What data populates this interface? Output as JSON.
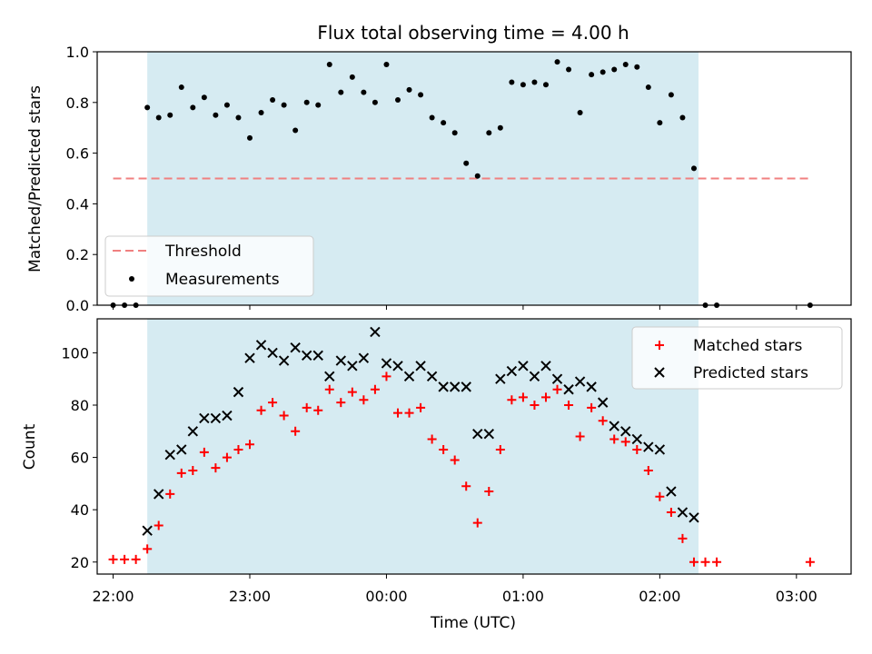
{
  "colors": {
    "span": "#add8e6",
    "threshold": "#f08080",
    "matched": "#ff0000",
    "predicted": "#000000",
    "measurement": "#000000"
  },
  "chart_data": [
    {
      "type": "scatter",
      "title": "Flux total observing time = 4.00 h",
      "xlabel": "",
      "ylabel": "Matched/Predicted stars",
      "ylim": [
        0,
        1.0
      ],
      "yticks": [
        "0.0",
        "0.2",
        "0.4",
        "0.6",
        "0.8",
        "1.0"
      ],
      "observing_window": [
        "22:15",
        "02:17"
      ],
      "legend": {
        "placement": "lower-left",
        "entries": [
          "Threshold",
          "Measurements"
        ]
      },
      "threshold": {
        "name": "Threshold",
        "value": 0.5,
        "x_range": [
          "22:00",
          "03:06"
        ]
      },
      "series": [
        {
          "name": "Measurements",
          "x": [
            "22:00",
            "22:05",
            "22:10",
            "22:15",
            "22:20",
            "22:25",
            "22:30",
            "22:35",
            "22:40",
            "22:45",
            "22:50",
            "22:55",
            "23:00",
            "23:05",
            "23:10",
            "23:15",
            "23:20",
            "23:25",
            "23:30",
            "23:35",
            "23:40",
            "23:45",
            "23:50",
            "23:55",
            "00:00",
            "00:05",
            "00:10",
            "00:15",
            "00:20",
            "00:25",
            "00:30",
            "00:35",
            "00:40",
            "00:45",
            "00:50",
            "00:55",
            "01:00",
            "01:05",
            "01:10",
            "01:15",
            "01:20",
            "01:25",
            "01:30",
            "01:35",
            "01:40",
            "01:45",
            "01:50",
            "01:55",
            "02:00",
            "02:05",
            "02:10",
            "02:15",
            "02:20",
            "02:25",
            "03:06"
          ],
          "y": [
            0.0,
            0.0,
            0.0,
            0.78,
            0.74,
            0.75,
            0.86,
            0.78,
            0.82,
            0.75,
            0.79,
            0.74,
            0.66,
            0.76,
            0.81,
            0.79,
            0.69,
            0.8,
            0.79,
            0.95,
            0.84,
            0.9,
            0.84,
            0.8,
            0.95,
            0.81,
            0.85,
            0.83,
            0.74,
            0.72,
            0.68,
            0.56,
            0.51,
            0.68,
            0.7,
            0.88,
            0.87,
            0.88,
            0.87,
            0.96,
            0.93,
            0.76,
            0.91,
            0.92,
            0.93,
            0.95,
            0.94,
            0.86,
            0.72,
            0.83,
            0.74,
            0.54,
            0.0,
            0.0,
            0.0
          ]
        }
      ]
    },
    {
      "type": "scatter",
      "title": "",
      "xlabel": "Time (UTC)",
      "ylabel": "Count",
      "ylim": [
        15.4,
        113
      ],
      "yticks": [
        "20",
        "40",
        "60",
        "80",
        "100"
      ],
      "xlim": [
        "21:53",
        "03:24"
      ],
      "xticks": [
        "22:00",
        "23:00",
        "00:00",
        "01:00",
        "02:00",
        "03:00"
      ],
      "observing_window": [
        "22:15",
        "02:17"
      ],
      "legend": {
        "placement": "upper-right",
        "entries": [
          "Matched stars",
          "Predicted stars"
        ]
      },
      "series": [
        {
          "name": "Matched stars",
          "x": [
            "22:00",
            "22:05",
            "22:10",
            "22:15",
            "22:20",
            "22:25",
            "22:30",
            "22:35",
            "22:40",
            "22:45",
            "22:50",
            "22:55",
            "23:00",
            "23:05",
            "23:10",
            "23:15",
            "23:20",
            "23:25",
            "23:30",
            "23:35",
            "23:40",
            "23:45",
            "23:50",
            "23:55",
            "00:00",
            "00:05",
            "00:10",
            "00:15",
            "00:20",
            "00:25",
            "00:30",
            "00:35",
            "00:40",
            "00:45",
            "00:50",
            "00:55",
            "01:00",
            "01:05",
            "01:10",
            "01:15",
            "01:20",
            "01:25",
            "01:30",
            "01:35",
            "01:40",
            "01:45",
            "01:50",
            "01:55",
            "02:00",
            "02:05",
            "02:10",
            "02:15",
            "02:20",
            "02:25",
            "03:06"
          ],
          "y": [
            21,
            21,
            21,
            25,
            34,
            46,
            54,
            55,
            62,
            56,
            60,
            63,
            65,
            78,
            81,
            76,
            70,
            79,
            78,
            86,
            81,
            85,
            82,
            86,
            91,
            77,
            77,
            79,
            67,
            63,
            59,
            49,
            35,
            47,
            63,
            82,
            83,
            80,
            83,
            86,
            80,
            68,
            79,
            74,
            67,
            66,
            63,
            55,
            45,
            39,
            29,
            20,
            20,
            20,
            20
          ]
        },
        {
          "name": "Predicted stars",
          "x": [
            "22:15",
            "22:20",
            "22:25",
            "22:30",
            "22:35",
            "22:40",
            "22:45",
            "22:50",
            "22:55",
            "23:00",
            "23:05",
            "23:10",
            "23:15",
            "23:20",
            "23:25",
            "23:30",
            "23:35",
            "23:40",
            "23:45",
            "23:50",
            "23:55",
            "00:00",
            "00:05",
            "00:10",
            "00:15",
            "00:20",
            "00:25",
            "00:30",
            "00:35",
            "00:40",
            "00:45",
            "00:50",
            "00:55",
            "01:00",
            "01:05",
            "01:10",
            "01:15",
            "01:20",
            "01:25",
            "01:30",
            "01:35",
            "01:40",
            "01:45",
            "01:50",
            "01:55",
            "02:00",
            "02:05",
            "02:10",
            "02:15"
          ],
          "y": [
            32,
            46,
            61,
            63,
            70,
            75,
            75,
            76,
            85,
            98,
            103,
            100,
            97,
            102,
            99,
            99,
            91,
            97,
            95,
            98,
            108,
            96,
            95,
            91,
            95,
            91,
            87,
            87,
            87,
            69,
            69,
            90,
            93,
            95,
            91,
            95,
            90,
            86,
            89,
            87,
            81,
            72,
            70,
            67,
            64,
            63,
            47,
            39,
            37
          ]
        }
      ]
    }
  ]
}
